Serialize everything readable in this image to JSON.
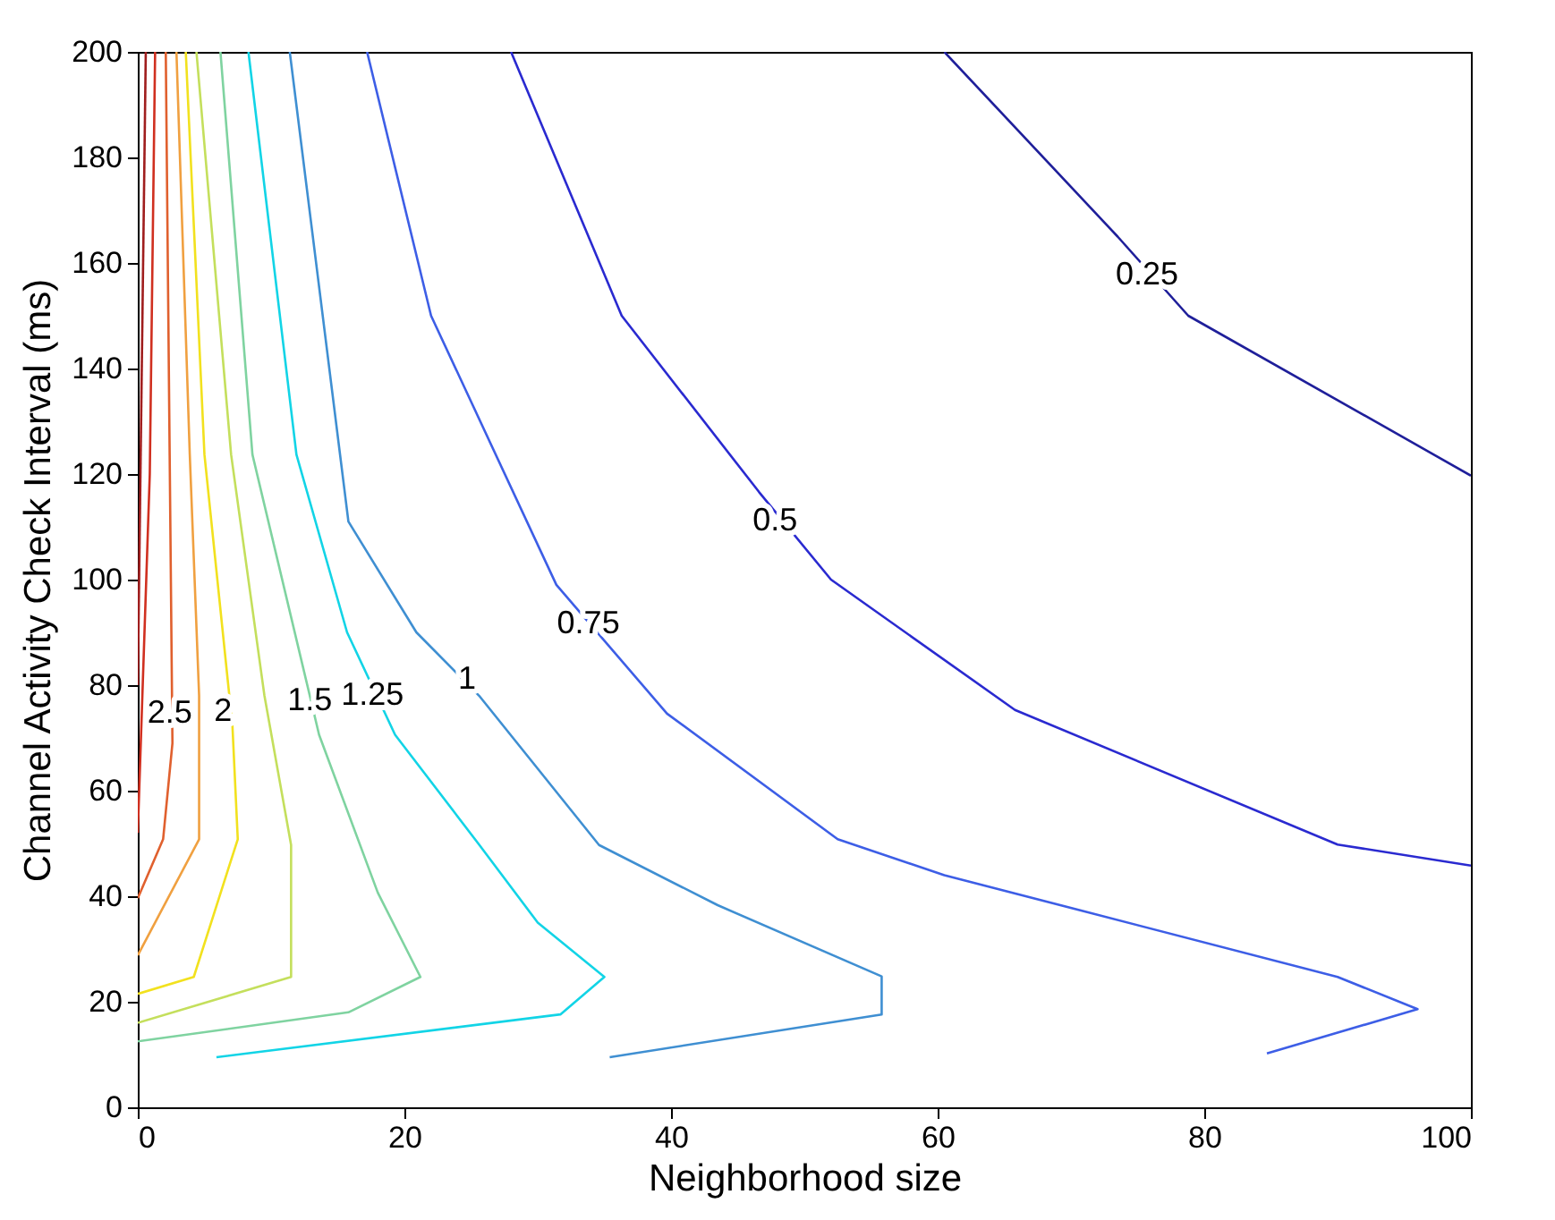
{
  "chart_data": {
    "type": "line",
    "xlabel": "Neighborhood size",
    "ylabel": "Channel Activity Check Interval (ms)",
    "xlim": [
      0,
      100
    ],
    "xticks": [
      0,
      20,
      40,
      60,
      80,
      100
    ],
    "ylim": [
      0,
      200
    ],
    "yticks": [
      0,
      20,
      40,
      60,
      80,
      100,
      120,
      140,
      160,
      180,
      200
    ],
    "grid": false,
    "legend": false,
    "series": [
      {
        "color": "#1f1f9a",
        "x": [
          60.5,
          73.5,
          78.8,
          100
        ],
        "values": [
          200,
          165,
          150,
          119.7
        ]
      },
      {
        "color": "#2a2ad0",
        "x": [
          28,
          36.3,
          46.6,
          52,
          65.8,
          90,
          100
        ],
        "values": [
          200,
          150,
          116.6,
          100,
          75.3,
          49.8,
          45.8
        ]
      },
      {
        "color": "#3d5ee6",
        "x": [
          17.2,
          22,
          31.4,
          39.7,
          52.5,
          60.5,
          90,
          96,
          84.7
        ],
        "values": [
          200,
          150,
          99,
          74.6,
          50.8,
          44,
          24.7,
          18.6,
          10.2
        ]
      },
      {
        "color": "#3f8fd2",
        "x": [
          11.4,
          15.8,
          20.9,
          25.6,
          34.6,
          43.5,
          55.8,
          55.8,
          35.4
        ],
        "values": [
          200,
          111,
          90,
          78,
          49.7,
          38.3,
          24.8,
          17.6,
          9.5
        ]
      },
      {
        "color": "#12d4e6",
        "x": [
          8.3,
          11.9,
          15.7,
          19.3,
          25.6,
          30,
          35,
          31.7,
          5.9
        ],
        "values": [
          200,
          123.7,
          90,
          70.6,
          49.8,
          35,
          24.7,
          17.6,
          9.5
        ]
      },
      {
        "color": "#7fd3a0",
        "x": [
          6.2,
          8.6,
          13.6,
          18,
          21.2,
          15.8,
          0
        ],
        "values": [
          200,
          123.7,
          70.6,
          40.7,
          24.7,
          18,
          12.5
        ]
      },
      {
        "color": "#c4df5c",
        "x": [
          4.4,
          7,
          9.5,
          11.5,
          11.5,
          0
        ],
        "values": [
          200,
          123.7,
          78,
          49.7,
          24.7,
          16
        ]
      },
      {
        "color": "#f2e11e",
        "x": [
          3.6,
          5,
          7.1,
          7.5,
          4.2,
          0
        ],
        "values": [
          200,
          123.7,
          72.3,
          50.8,
          24.7,
          21.5
        ]
      },
      {
        "color": "#f0a040",
        "x": [
          2.9,
          3.9,
          4.6,
          4.6,
          0
        ],
        "values": [
          200,
          123.7,
          78,
          50.8,
          28.8
        ]
      },
      {
        "color": "#e0602e",
        "x": [
          2.1,
          2.6,
          1.9,
          0
        ],
        "values": [
          200,
          69,
          50.8,
          39.6
        ]
      },
      {
        "color": "#d03020",
        "x": [
          1.3,
          0.9,
          0
        ],
        "values": [
          200,
          120,
          52
        ]
      },
      {
        "color": "#a01e1e",
        "x": [
          0.6,
          0
        ],
        "values": [
          200,
          80
        ]
      }
    ],
    "annotations": [
      {
        "text": "0.25",
        "x": 75.7,
        "y": 157.6
      },
      {
        "text": "0.5",
        "x": 47.8,
        "y": 111
      },
      {
        "text": "0.75",
        "x": 33.8,
        "y": 91.5
      },
      {
        "text": "1",
        "x": 24.7,
        "y": 81
      },
      {
        "text": "1.25",
        "x": 17.6,
        "y": 78
      },
      {
        "text": "1.5",
        "x": 12.9,
        "y": 77
      },
      {
        "text": "2",
        "x": 6.4,
        "y": 75
      },
      {
        "text": "2.5",
        "x": 2.4,
        "y": 74.6
      }
    ]
  }
}
